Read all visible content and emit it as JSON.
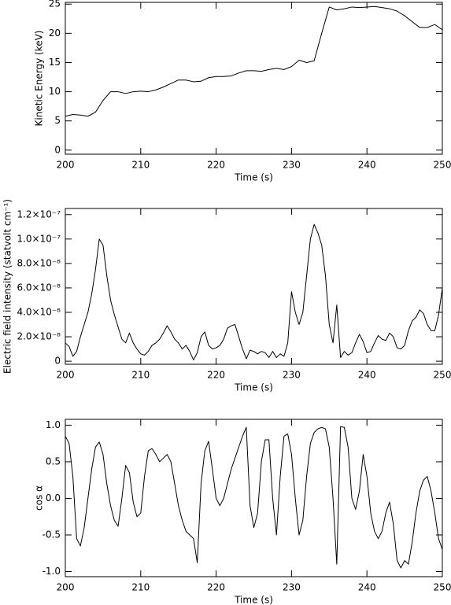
{
  "chart_data": [
    {
      "type": "line",
      "color": "#000000",
      "xlabel": "Time (s)",
      "ylabel": "Kinetic Energy (keV)",
      "x": [
        200,
        201,
        202,
        203,
        204,
        205,
        206,
        207,
        208,
        209,
        210,
        211,
        212,
        213,
        214,
        215,
        216,
        217,
        218,
        219,
        220,
        221,
        222,
        223,
        224,
        225,
        226,
        227,
        228,
        229,
        230,
        231,
        232,
        233,
        234,
        235,
        236,
        237,
        238,
        239,
        240,
        241,
        242,
        243,
        244,
        245,
        246,
        247,
        248,
        249,
        250
      ],
      "values": [
        5.8,
        6.1,
        6.0,
        5.8,
        6.5,
        8.5,
        10.0,
        10.0,
        9.7,
        10.0,
        10.1,
        10.0,
        10.3,
        10.8,
        11.4,
        12.0,
        12.0,
        11.7,
        11.8,
        12.4,
        12.6,
        12.6,
        12.7,
        13.2,
        13.6,
        13.6,
        13.5,
        13.8,
        14.0,
        13.8,
        14.3,
        15.4,
        15.0,
        15.3,
        20.0,
        24.5,
        24.0,
        24.2,
        24.5,
        24.4,
        24.5,
        24.6,
        24.4,
        24.2,
        23.8,
        23.0,
        22.0,
        21.0,
        21.0,
        21.5,
        20.6
      ],
      "xlim": [
        200,
        250
      ],
      "xticks": [
        200,
        210,
        220,
        230,
        240,
        250
      ],
      "ylim": [
        -0.7,
        25.3
      ],
      "yticks": [
        0,
        5,
        10,
        15,
        20,
        25
      ]
    },
    {
      "type": "line",
      "color": "#000000",
      "xlabel": "Time (s)",
      "ylabel": "Electric field intensity (statvolt cm⁻¹)",
      "x": [
        200,
        200.5,
        201,
        201.5,
        202,
        202.5,
        203,
        203.5,
        204,
        204.5,
        205,
        205.5,
        206,
        206.5,
        207,
        207.5,
        208,
        208.5,
        209,
        209.5,
        210,
        210.5,
        211,
        211.5,
        212,
        212.5,
        213,
        213.5,
        214,
        214.5,
        215,
        215.5,
        216,
        216.5,
        217,
        217.5,
        218,
        218.5,
        219,
        219.5,
        220,
        220.5,
        221,
        221.5,
        222,
        222.5,
        223,
        223.5,
        224,
        224.5,
        225,
        225.5,
        226,
        226.5,
        227,
        227.5,
        228,
        228.5,
        229,
        229.5,
        230,
        230.5,
        231,
        231.5,
        232,
        232.5,
        233,
        233.5,
        234,
        234.5,
        235,
        235.5,
        236,
        236.5,
        237,
        237.5,
        238,
        238.5,
        239,
        239.5,
        240,
        240.5,
        241,
        241.5,
        242,
        242.5,
        243,
        243.5,
        244,
        244.5,
        245,
        245.5,
        246,
        246.5,
        247,
        247.5,
        248,
        248.5,
        249,
        249.5,
        250
      ],
      "values": [
        1.5e-08,
        1.2e-08,
        4e-09,
        8e-09,
        2e-08,
        3e-08,
        4e-08,
        5.5e-08,
        7.5e-08,
        1e-07,
        9.5e-08,
        7e-08,
        5e-08,
        3.8e-08,
        2.8e-08,
        1.8e-08,
        1.5e-08,
        2.3e-08,
        1.5e-08,
        1e-08,
        6e-09,
        5e-09,
        8e-09,
        1.3e-08,
        1.5e-08,
        1.8e-08,
        2.3e-08,
        2.9e-08,
        2.4e-08,
        1.8e-08,
        1.5e-08,
        1e-08,
        1.3e-08,
        8e-09,
        1e-09,
        7e-09,
        2e-08,
        2.4e-08,
        1.3e-08,
        1e-08,
        1.1e-08,
        1.3e-08,
        1.8e-08,
        2.7e-08,
        2.9e-08,
        3e-08,
        2e-08,
        1e-08,
        2e-09,
        9e-09,
        8e-09,
        6e-09,
        8e-09,
        7e-09,
        3e-09,
        8e-09,
        3e-09,
        6e-09,
        4e-09,
        1.5e-08,
        5.7e-08,
        4e-08,
        3e-08,
        4e-08,
        7e-08,
        1e-07,
        1.12e-07,
        1.05e-07,
        9.5e-08,
        7e-08,
        3e-08,
        1.5e-08,
        4.6e-08,
        3e-09,
        8e-09,
        5e-09,
        7e-09,
        1.5e-08,
        2.2e-08,
        1.6e-08,
        7e-09,
        8e-09,
        1.5e-08,
        2.1e-08,
        1.8e-08,
        1.7e-08,
        2.3e-08,
        2e-08,
        1.1e-08,
        1e-08,
        1.3e-08,
        2.5e-08,
        3.3e-08,
        3.6e-08,
        4.2e-08,
        3.9e-08,
        3e-08,
        2.5e-08,
        2.5e-08,
        3.8e-08,
        6e-08
      ],
      "xlim": [
        200,
        250
      ],
      "xticks": [
        200,
        210,
        220,
        230,
        240,
        250
      ],
      "ylim": [
        -2.5e-09,
        1.25e-07
      ],
      "yticks": [
        0,
        {
          "value": 2e-08,
          "label": "2.0×10⁻⁸"
        },
        {
          "value": 4e-08,
          "label": "4.0×10⁻⁸"
        },
        {
          "value": 6e-08,
          "label": "6.0×10⁻⁸"
        },
        {
          "value": 8e-08,
          "label": "8.0×10⁻⁸"
        },
        {
          "value": 1e-07,
          "label": "1.0×10⁻⁷"
        },
        {
          "value": 1.2e-07,
          "label": "1.2×10⁻⁷"
        }
      ]
    },
    {
      "type": "line",
      "color": "#000000",
      "xlabel": "Time (s)",
      "ylabel": "cos α",
      "x": [
        200,
        200.5,
        201,
        201.5,
        202,
        202.5,
        203,
        203.5,
        204,
        204.5,
        205,
        205.5,
        206,
        206.5,
        207,
        207.5,
        208,
        208.5,
        209,
        209.5,
        210,
        210.5,
        211,
        211.5,
        212,
        212.5,
        213,
        213.5,
        214,
        214.5,
        215,
        215.5,
        216,
        216.5,
        217,
        217.5,
        218,
        218.5,
        219,
        219.5,
        220,
        220.5,
        221,
        221.5,
        222,
        222.5,
        223,
        223.5,
        224,
        224.5,
        225,
        225.5,
        226,
        226.5,
        227,
        227.5,
        228,
        228.5,
        229,
        229.5,
        230,
        230.5,
        231,
        231.5,
        232,
        232.5,
        233,
        233.5,
        234,
        234.5,
        235,
        235.5,
        236,
        236.5,
        237,
        237.5,
        238,
        238.5,
        239,
        239.5,
        240,
        240.5,
        241,
        241.5,
        242,
        242.5,
        243,
        243.5,
        244,
        244.5,
        245,
        245.5,
        246,
        246.5,
        247,
        247.5,
        248,
        248.5,
        249,
        249.5,
        250
      ],
      "values": [
        0.85,
        0.75,
        0.3,
        -0.55,
        -0.65,
        -0.4,
        0.0,
        0.4,
        0.7,
        0.77,
        0.6,
        0.2,
        -0.1,
        -0.3,
        -0.38,
        0.0,
        0.45,
        0.35,
        -0.05,
        -0.25,
        -0.2,
        0.3,
        0.65,
        0.68,
        0.6,
        0.5,
        0.55,
        0.6,
        0.5,
        0.2,
        -0.1,
        -0.3,
        -0.45,
        -0.5,
        -0.55,
        -0.88,
        0.2,
        0.65,
        0.78,
        0.4,
        0.0,
        -0.1,
        0.0,
        0.2,
        0.4,
        0.55,
        0.7,
        0.85,
        0.97,
        -0.1,
        -0.4,
        -0.2,
        0.5,
        0.8,
        0.8,
        0.0,
        -0.5,
        0.3,
        0.85,
        0.88,
        0.6,
        0.0,
        -0.5,
        -0.3,
        0.3,
        0.75,
        0.9,
        0.95,
        0.97,
        0.95,
        0.7,
        0.0,
        -0.9,
        0.98,
        0.97,
        0.7,
        0.0,
        -0.15,
        0.1,
        0.6,
        0.3,
        -0.2,
        -0.45,
        -0.55,
        -0.45,
        -0.2,
        -0.05,
        -0.35,
        -0.85,
        -0.95,
        -0.85,
        -0.9,
        -0.6,
        -0.2,
        0.1,
        0.25,
        0.3,
        0.1,
        -0.2,
        -0.55,
        -0.7
      ],
      "xlim": [
        200,
        250
      ],
      "xticks": [
        200,
        210,
        220,
        230,
        240,
        250
      ],
      "ylim": [
        -1.07,
        1.08
      ],
      "yticks": [
        {
          "value": -1,
          "label": "-1.0"
        },
        -0.5,
        {
          "value": 0,
          "label": "0.0"
        },
        0.5,
        {
          "value": 1,
          "label": "1.0"
        }
      ]
    }
  ]
}
